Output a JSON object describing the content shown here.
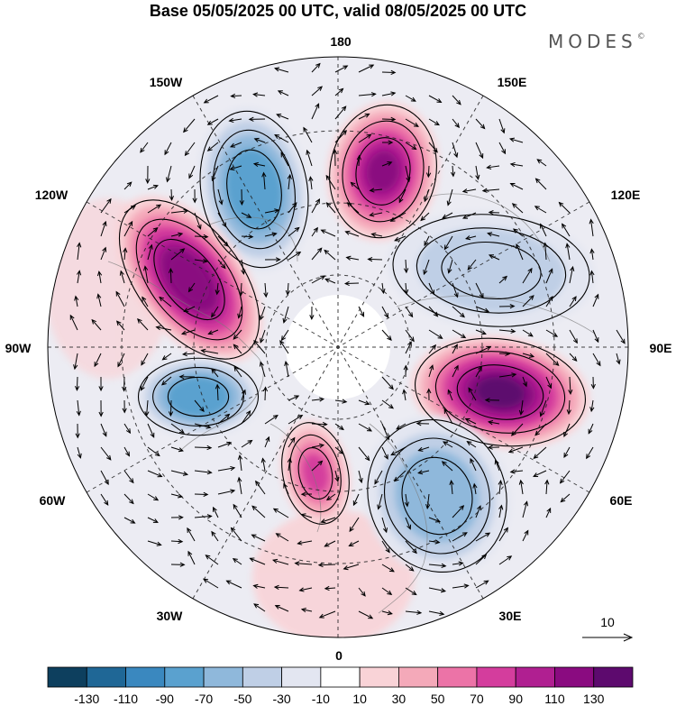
{
  "title": "Base 05/05/2025 00 UTC, valid 08/05/2025 00 UTC",
  "brand": {
    "name": "MODES",
    "mark": "©"
  },
  "map": {
    "projection": "north polar stereographic",
    "longitude_labels": {
      "top": "180",
      "bottom": "0",
      "left": "90W",
      "right": "90E",
      "upper_left_1": "150W",
      "upper_left_2": "120W",
      "upper_right_1": "150E",
      "upper_right_2": "120E",
      "lower_left_1": "60W",
      "lower_left_2": "30W",
      "lower_right_1": "60E",
      "lower_right_2": "30E"
    },
    "field_features": [
      {
        "sign": "negative",
        "value": -90,
        "location": "150W-120W"
      },
      {
        "sign": "positive",
        "value": 120,
        "location": "near 180"
      },
      {
        "sign": "positive",
        "value": 125,
        "location": "120W-100W"
      },
      {
        "sign": "negative",
        "value": -50,
        "location": "120E-100E"
      },
      {
        "sign": "negative",
        "value": -90,
        "location": "90W-70W"
      },
      {
        "sign": "positive",
        "value": 130,
        "location": "90E-75E"
      },
      {
        "sign": "positive",
        "value": 70,
        "location": "near 10W"
      },
      {
        "sign": "negative",
        "value": -70,
        "location": "30E-50E"
      }
    ]
  },
  "vector_reference": {
    "label": "10"
  },
  "colorbar": {
    "ticks": [
      "-130",
      "-110",
      "-90",
      "-70",
      "-50",
      "-30",
      "-10",
      "10",
      "30",
      "50",
      "70",
      "90",
      "110",
      "130"
    ],
    "colors": [
      "#0d3f5e",
      "#1f6796",
      "#3a88bf",
      "#5aa1cf",
      "#8fb8db",
      "#bfcfe6",
      "#e3e6f1",
      "#ffffff",
      "#f9d3d7",
      "#f4a9b9",
      "#ec73a7",
      "#d43d9d",
      "#b01f91",
      "#8a0b80",
      "#5d0a6e"
    ]
  }
}
